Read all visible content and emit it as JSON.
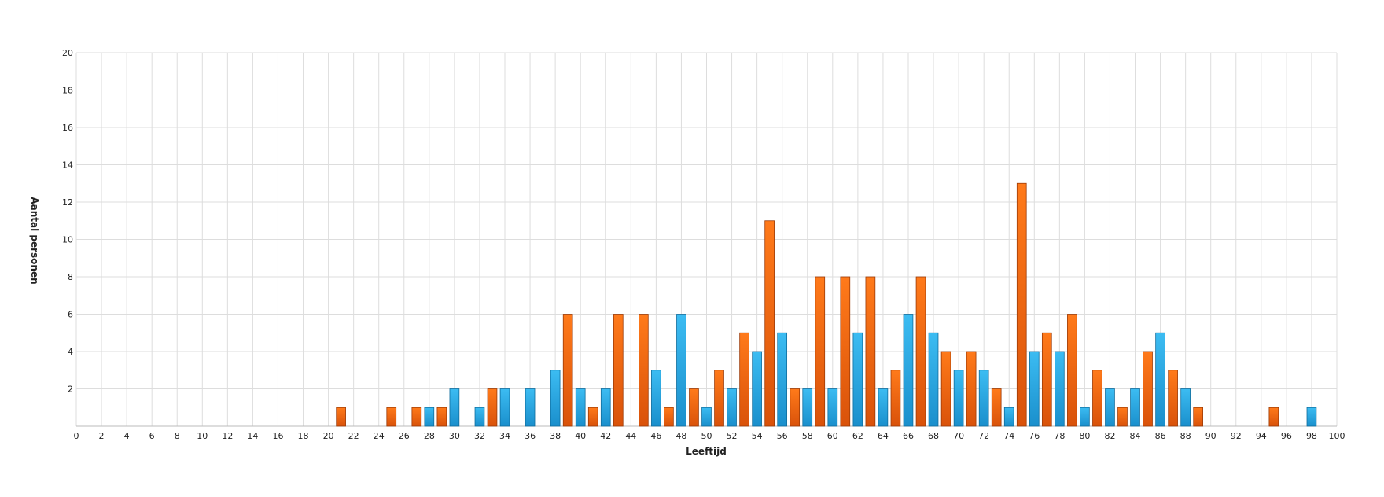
{
  "chart_data": {
    "type": "bar",
    "xlabel": "Leeftijd",
    "ylabel": "Aantal personen",
    "xlim": [
      0,
      100
    ],
    "ylim": [
      0,
      20
    ],
    "x_ticks": [
      0,
      2,
      4,
      6,
      8,
      10,
      12,
      14,
      16,
      18,
      20,
      22,
      24,
      26,
      28,
      30,
      32,
      34,
      36,
      38,
      40,
      42,
      44,
      46,
      48,
      50,
      52,
      54,
      56,
      58,
      60,
      62,
      64,
      66,
      68,
      70,
      72,
      74,
      76,
      78,
      80,
      82,
      84,
      86,
      88,
      90,
      92,
      94,
      96,
      98,
      100
    ],
    "y_ticks": [
      2,
      4,
      6,
      8,
      10,
      12,
      14,
      16,
      18,
      20
    ],
    "grid": true,
    "series": [
      {
        "color": "#f36a10",
        "points": [
          {
            "x": 21,
            "y": 1
          },
          {
            "x": 25,
            "y": 1
          },
          {
            "x": 27,
            "y": 1
          },
          {
            "x": 29,
            "y": 1
          },
          {
            "x": 33,
            "y": 2
          },
          {
            "x": 39,
            "y": 6
          },
          {
            "x": 41,
            "y": 1
          },
          {
            "x": 43,
            "y": 6
          },
          {
            "x": 45,
            "y": 6
          },
          {
            "x": 47,
            "y": 1
          },
          {
            "x": 49,
            "y": 2
          },
          {
            "x": 51,
            "y": 3
          },
          {
            "x": 53,
            "y": 5
          },
          {
            "x": 55,
            "y": 11
          },
          {
            "x": 57,
            "y": 2
          },
          {
            "x": 59,
            "y": 8
          },
          {
            "x": 61,
            "y": 8
          },
          {
            "x": 63,
            "y": 8
          },
          {
            "x": 65,
            "y": 3
          },
          {
            "x": 67,
            "y": 8
          },
          {
            "x": 69,
            "y": 4
          },
          {
            "x": 71,
            "y": 4
          },
          {
            "x": 73,
            "y": 2
          },
          {
            "x": 75,
            "y": 13
          },
          {
            "x": 77,
            "y": 5
          },
          {
            "x": 79,
            "y": 6
          },
          {
            "x": 81,
            "y": 3
          },
          {
            "x": 83,
            "y": 1
          },
          {
            "x": 85,
            "y": 4
          },
          {
            "x": 87,
            "y": 3
          },
          {
            "x": 89,
            "y": 1
          },
          {
            "x": 95,
            "y": 1
          }
        ]
      },
      {
        "color": "#2aaae6",
        "points": [
          {
            "x": 28,
            "y": 1
          },
          {
            "x": 30,
            "y": 2
          },
          {
            "x": 32,
            "y": 1
          },
          {
            "x": 34,
            "y": 2
          },
          {
            "x": 36,
            "y": 2
          },
          {
            "x": 38,
            "y": 3
          },
          {
            "x": 40,
            "y": 2
          },
          {
            "x": 42,
            "y": 2
          },
          {
            "x": 46,
            "y": 3
          },
          {
            "x": 48,
            "y": 6
          },
          {
            "x": 50,
            "y": 1
          },
          {
            "x": 52,
            "y": 2
          },
          {
            "x": 54,
            "y": 4
          },
          {
            "x": 56,
            "y": 5
          },
          {
            "x": 58,
            "y": 2
          },
          {
            "x": 60,
            "y": 2
          },
          {
            "x": 62,
            "y": 5
          },
          {
            "x": 64,
            "y": 2
          },
          {
            "x": 66,
            "y": 6
          },
          {
            "x": 68,
            "y": 5
          },
          {
            "x": 70,
            "y": 3
          },
          {
            "x": 72,
            "y": 3
          },
          {
            "x": 74,
            "y": 1
          },
          {
            "x": 76,
            "y": 4
          },
          {
            "x": 78,
            "y": 4
          },
          {
            "x": 80,
            "y": 1
          },
          {
            "x": 82,
            "y": 2
          },
          {
            "x": 84,
            "y": 2
          },
          {
            "x": 86,
            "y": 5
          },
          {
            "x": 88,
            "y": 2
          },
          {
            "x": 98,
            "y": 1
          }
        ]
      }
    ]
  }
}
